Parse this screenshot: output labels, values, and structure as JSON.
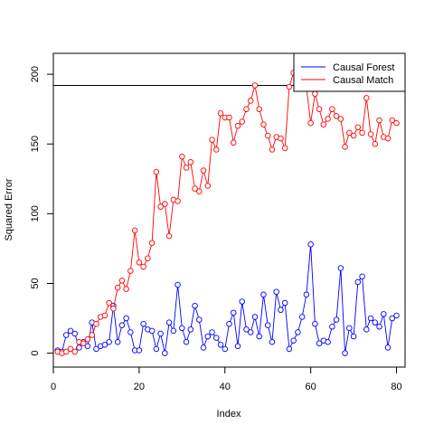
{
  "chart_data": {
    "type": "line",
    "title": "",
    "xlabel": "Index",
    "ylabel": "Squared Error",
    "xlim": [
      0,
      82
    ],
    "ylim": [
      -10,
      215
    ],
    "x_ticks": [
      0,
      20,
      40,
      60,
      80
    ],
    "x_tick_labels": [
      "0",
      "20",
      "40",
      "60",
      "80"
    ],
    "y_ticks": [
      0,
      50,
      100,
      150,
      200
    ],
    "y_tick_labels": [
      "0",
      "50",
      "100",
      "150",
      "200"
    ],
    "grid": false,
    "legend_position": "top-right",
    "x": [
      1,
      2,
      3,
      4,
      5,
      6,
      7,
      8,
      9,
      10,
      11,
      12,
      13,
      14,
      15,
      16,
      17,
      18,
      19,
      20,
      21,
      22,
      23,
      24,
      25,
      26,
      27,
      28,
      29,
      30,
      31,
      32,
      33,
      34,
      35,
      36,
      37,
      38,
      39,
      40,
      41,
      42,
      43,
      44,
      45,
      46,
      47,
      48,
      49,
      50,
      51,
      52,
      53,
      54,
      55,
      56,
      57,
      58,
      59,
      60,
      61,
      62,
      63,
      64,
      65,
      66,
      67,
      68,
      69,
      70,
      71,
      72,
      73,
      74,
      75,
      76,
      77,
      78,
      79,
      80
    ],
    "series": [
      {
        "name": "Causal Forest",
        "color": "#0000ff",
        "values": [
          2,
          1,
          13,
          16,
          14,
          4,
          8,
          5,
          22,
          3,
          5,
          6,
          8,
          34,
          8,
          20,
          25,
          15,
          2,
          2,
          21,
          17,
          16,
          3,
          14,
          0,
          22,
          16,
          49,
          18,
          8,
          17,
          34,
          24,
          4,
          12,
          15,
          11,
          6,
          3,
          21,
          29,
          5,
          37,
          17,
          15,
          26,
          12,
          42,
          20,
          8,
          44,
          31,
          36,
          3,
          9,
          15,
          26,
          42,
          78,
          21,
          7,
          9,
          8,
          19,
          24,
          61,
          0,
          18,
          12,
          51,
          55,
          17,
          25,
          22,
          19,
          28,
          4,
          25,
          27
        ]
      },
      {
        "name": "Causal Match",
        "color": "#ff0000",
        "values": [
          1,
          0,
          1,
          3,
          1,
          8,
          7,
          10,
          13,
          21,
          26,
          27,
          36,
          32,
          47,
          52,
          46,
          59,
          88,
          65,
          62,
          68,
          79,
          130,
          105,
          107,
          84,
          110,
          109,
          141,
          133,
          137,
          118,
          116,
          131,
          120,
          153,
          146,
          172,
          169,
          169,
          151,
          163,
          166,
          175,
          181,
          192,
          175,
          164,
          156,
          146,
          155,
          154,
          147,
          191,
          201,
          213,
          193,
          191,
          165,
          186,
          175,
          164,
          168,
          175,
          170,
          168,
          148,
          158,
          156,
          162,
          158,
          183,
          157,
          150,
          167,
          155,
          154,
          167,
          165
        ]
      }
    ]
  }
}
